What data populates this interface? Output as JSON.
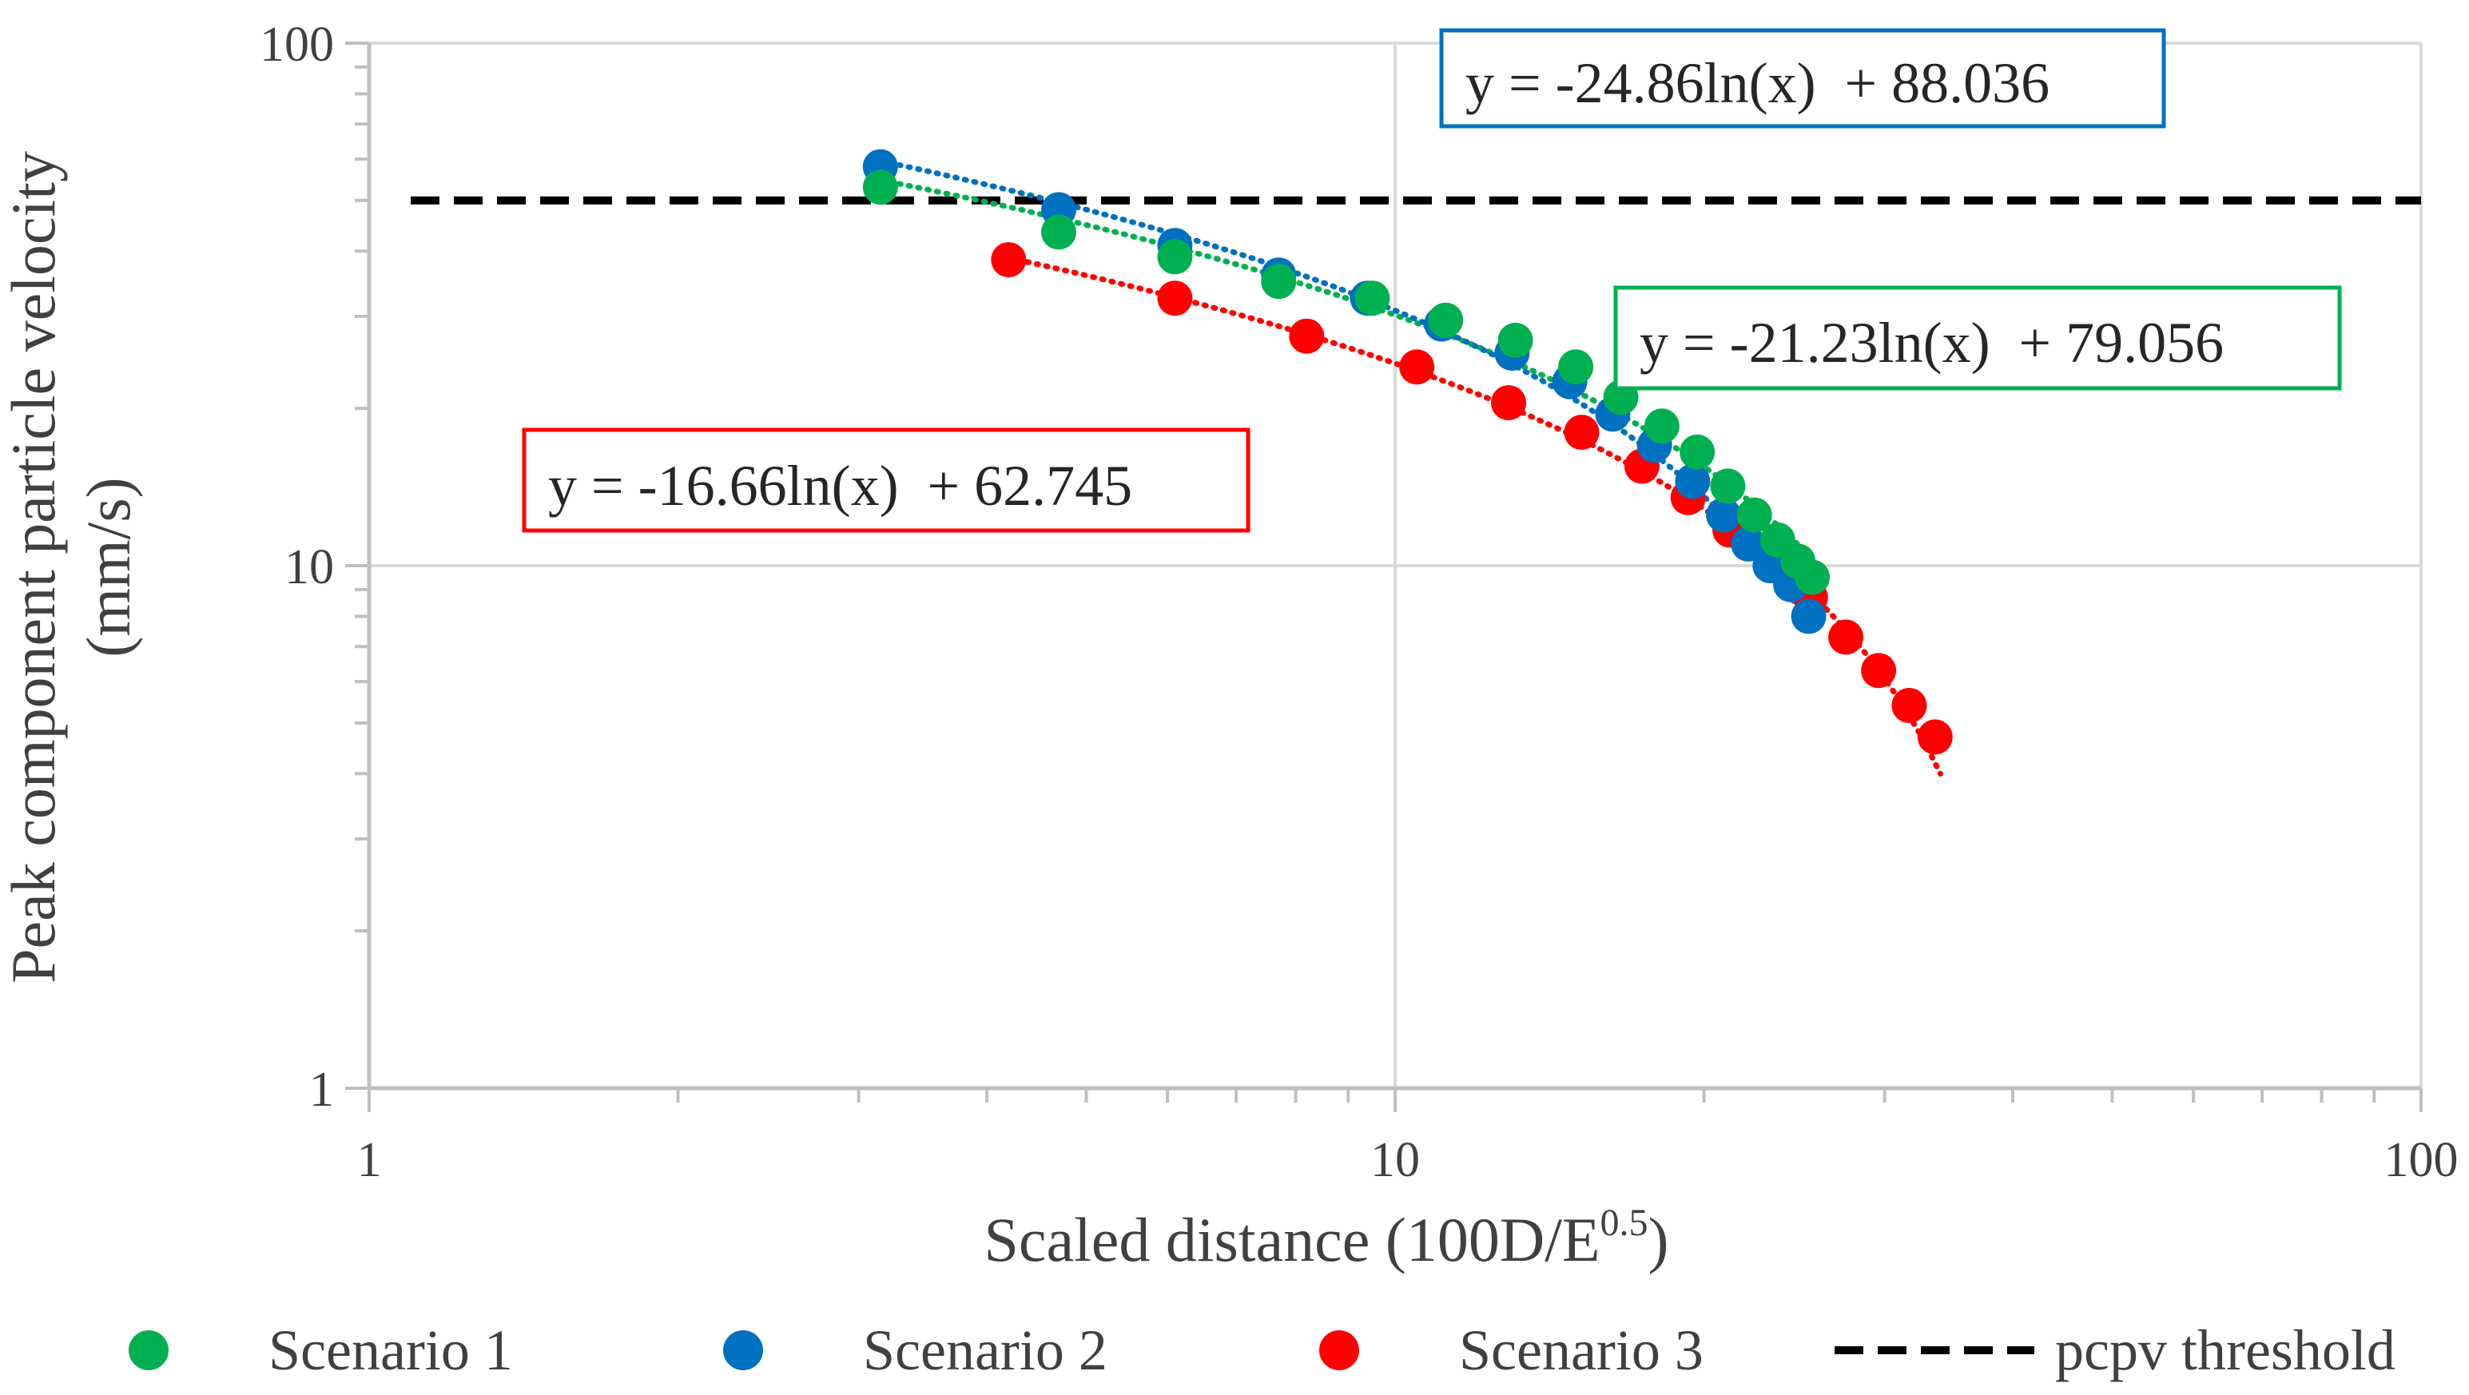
{
  "chart_data": {
    "type": "scatter",
    "title": "",
    "xlabel_main": "Scaled distance (100D/E",
    "xlabel_sup": "0.5",
    "xlabel_end": ")",
    "ylabel_line1": "Peak component particle velocity",
    "ylabel_line2": "(mm/s)",
    "x_scale": "log",
    "y_scale": "log",
    "xlim": [
      1,
      100
    ],
    "ylim": [
      1,
      100
    ],
    "x_ticks": [
      1,
      10,
      100
    ],
    "y_ticks": [
      1,
      10,
      100
    ],
    "x_tick_labels": [
      "1",
      "10",
      "100"
    ],
    "y_tick_labels": [
      "1",
      "10",
      "100"
    ],
    "grid": true,
    "legend_position": "bottom",
    "series": [
      {
        "name": "Scenario 1",
        "color": "#00B050",
        "x": [
          3.15,
          4.7,
          6.1,
          7.7,
          9.5,
          11.2,
          13.1,
          15.0,
          16.6,
          18.2,
          19.7,
          21.1,
          22.4,
          23.6,
          24.7,
          25.5
        ],
        "y": [
          53,
          43.5,
          39,
          35,
          32.5,
          29.5,
          27,
          24,
          21,
          18.5,
          16.5,
          14.2,
          12.5,
          11.2,
          10.2,
          9.5
        ]
      },
      {
        "name": "Scenario 2",
        "color": "#0070C0",
        "x": [
          3.15,
          4.7,
          6.1,
          7.7,
          9.4,
          11.1,
          13.0,
          14.8,
          16.3,
          17.9,
          19.5,
          20.9,
          22.1,
          23.2,
          24.3,
          25.3
        ],
        "y": [
          58,
          48,
          41,
          36,
          32.5,
          29,
          25.5,
          22.5,
          19.5,
          17,
          14.5,
          12.5,
          11,
          10,
          9.2,
          8
        ]
      },
      {
        "name": "Scenario 3",
        "color": "#FF0000",
        "x": [
          4.2,
          6.1,
          8.2,
          10.5,
          12.9,
          15.2,
          17.4,
          19.3,
          21.2,
          23.3,
          25.4,
          27.5,
          29.6,
          31.7,
          33.6
        ],
        "y": [
          38.5,
          32.5,
          27.5,
          24,
          20.5,
          18,
          15.5,
          13.5,
          11.7,
          10,
          8.7,
          7.3,
          6.3,
          5.4,
          4.7
        ]
      },
      {
        "name": "pcpv threshold",
        "color": "#000000",
        "constant_y": 50
      }
    ],
    "trendlines": [
      {
        "series": "Scenario 1",
        "a": -21.23,
        "b": 79.056,
        "x_range": [
          3.15,
          25.5
        ],
        "label": "y = -21.23ln(x)  + 79.056",
        "color": "#00B050"
      },
      {
        "series": "Scenario 2",
        "a": -24.86,
        "b": 88.036,
        "x_range": [
          3.15,
          25.3
        ],
        "label": "y = -24.86ln(x)  + 88.036",
        "color": "#0070C0"
      },
      {
        "series": "Scenario 3",
        "a": -16.66,
        "b": 62.745,
        "x_range": [
          4.2,
          34.0
        ],
        "label": "y = -16.66ln(x)  + 62.745",
        "color": "#FF0000"
      }
    ]
  }
}
